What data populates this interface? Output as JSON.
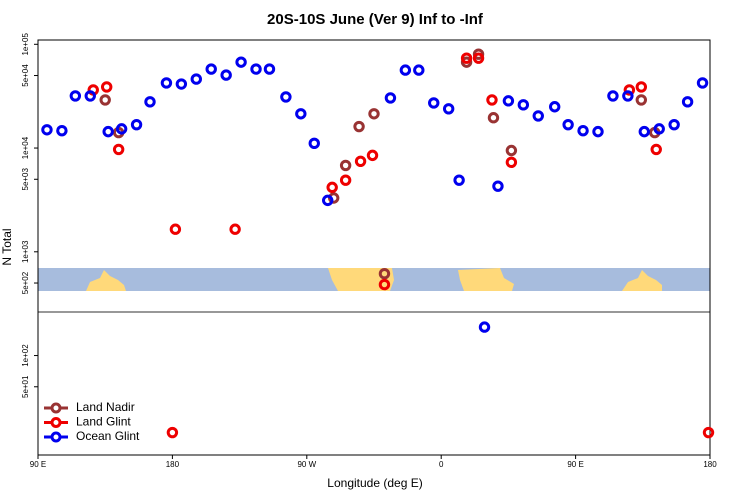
{
  "chart_data": {
    "type": "scatter",
    "title": "20S-10S June (Ver 9)   Inf to -Inf",
    "x_label": "Longitude (deg E)",
    "y_label": "N Total",
    "log_y": true,
    "legend": "bottom-left",
    "xlim": [
      90,
      540
    ],
    "xticks": [
      {
        "value": 90,
        "label": "90 E"
      },
      {
        "value": 180,
        "label": "180"
      },
      {
        "value": 270,
        "label": "90 W"
      },
      {
        "value": 360,
        "label": "0"
      },
      {
        "value": 450,
        "label": "90 E"
      },
      {
        "value": 540,
        "label": "180"
      }
    ],
    "ylim": [
      11,
      110000
    ],
    "yticks": [
      {
        "value": 100000,
        "label": "1e+05"
      },
      {
        "value": 50000,
        "label": "5e+04"
      },
      {
        "value": 10000,
        "label": "1e+04"
      },
      {
        "value": 5000,
        "label": "5e+03"
      },
      {
        "value": 1000,
        "label": "1e+03"
      },
      {
        "value": 500,
        "label": "5e+02"
      },
      {
        "value": 100,
        "label": "1e+02"
      },
      {
        "value": 50,
        "label": "5e+01"
      }
    ],
    "series": [
      {
        "name": "Land Nadir",
        "color": "#993333",
        "x": [
          135,
          144,
          288,
          296,
          305,
          315,
          322,
          377,
          385,
          395,
          407,
          494,
          503
        ],
        "values": [
          29100,
          14100,
          3300,
          6800,
          16100,
          21400,
          615,
          67300,
          80300,
          19600,
          9470,
          29100,
          14100
        ]
      },
      {
        "name": "Land Glint",
        "color": "#ee0000",
        "x": [
          127,
          136,
          144,
          182,
          222,
          287,
          296,
          306,
          314,
          322,
          377,
          385,
          394,
          407,
          486,
          494,
          504,
          180,
          539
        ],
        "values": [
          36300,
          38800,
          9700,
          1650,
          1650,
          4180,
          4900,
          7450,
          8500,
          483,
          73500,
          73500,
          29100,
          7290,
          36300,
          38800,
          9700,
          18.1,
          18.1
        ]
      },
      {
        "name": "Ocean Glint",
        "color": "#0000ee",
        "x": [
          96,
          106,
          115,
          125,
          137,
          146,
          156,
          165,
          176,
          186,
          196,
          206,
          216,
          226,
          236,
          245,
          256,
          266,
          275,
          284,
          326,
          336,
          345,
          355,
          365,
          372,
          389,
          398,
          405,
          415,
          425,
          436,
          445,
          455,
          465,
          475,
          485,
          496,
          506,
          516,
          525,
          535
        ],
        "values": [
          15000,
          14700,
          31800,
          31800,
          14400,
          15300,
          16800,
          27900,
          42400,
          41400,
          46200,
          57700,
          50500,
          67300,
          57700,
          57700,
          31100,
          21400,
          11100,
          3130,
          30400,
          56400,
          56400,
          27200,
          23900,
          4900,
          188,
          4290,
          28500,
          26100,
          20400,
          25000,
          16800,
          14700,
          14400,
          31800,
          31800,
          14400,
          15300,
          16800,
          27900,
          42400
        ]
      }
    ]
  }
}
